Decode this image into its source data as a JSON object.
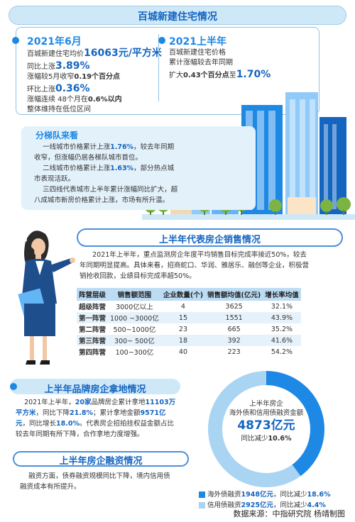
{
  "header": {
    "title": "百城新建住宅情况"
  },
  "june": {
    "title": "2021年6月",
    "line1_prefix": "百城新建住宅均价",
    "line1_value": "16063元/平方米",
    "line2_prefix": "同比上涨",
    "line2_value": "3.89%",
    "line3_prefix": "涨幅较5月收窄",
    "line3_value": "0.19个百分点",
    "line4_prefix": "环比上涨",
    "line4_value": "0.36%",
    "line5_prefix": "涨幅连续 48个月在",
    "line5_value": "0.6%以内",
    "line6": "整体维持在低位区间"
  },
  "h1": {
    "title": "2021上半年",
    "line1": "百城新建住宅价格",
    "line2": "累计涨幅较去年同期",
    "line3_prefix": "扩大",
    "line3_value1": "0.43个百分点",
    "line3_mid": "至",
    "line3_value2": "1.70%"
  },
  "tiers": {
    "title": "分梯队来看",
    "p1_prefix": "一线城市价格累计上涨",
    "p1_value": "1.76%",
    "p1_suffix": "，较去年同期",
    "p1_line2": "收窄，但涨幅仍居各梯队城市首位。",
    "p2_prefix": "二线城市价格累计上涨",
    "p2_value": "1.63%",
    "p2_suffix": "，部分热点城",
    "p2_line2": "市表现活跃。",
    "p3_line1": "三四线代表城市上半年累计涨幅同比扩大，超",
    "p3_line2": "八成城市新房价格累计上涨，市场有所升温。"
  },
  "sales": {
    "title": "上半年代表房企销售情况",
    "p_line1": "2021年上半年，重点监测房企年度平均销售目标完成率接近50%，较去",
    "p_line2": "年同期明显提高。具体来看，招商蛇口、华润、雅居乐、融创等企业，积极营",
    "p_line3": "销抢收回款，业绩目标完成率超50%。",
    "columns": [
      "阵营层级",
      "销售额范围",
      "企业数量(个)",
      "销售额均值(亿元)",
      "增长率均值"
    ],
    "rows": [
      [
        "超级阵营",
        "3000亿以上",
        "4",
        "3625",
        "32.1%"
      ],
      [
        "第一阵营",
        "1000 ~3000亿",
        "15",
        "1551",
        "43.9%"
      ],
      [
        "第二阵营",
        "500~1000亿",
        "23",
        "665",
        "35.2%"
      ],
      [
        "第三阵营",
        "300~ 500亿",
        "18",
        "392",
        "41.6%"
      ],
      [
        "第四阵营",
        "100~300亿",
        "40",
        "223",
        "54.2%"
      ]
    ]
  },
  "land": {
    "title": "上半年品牌房企拿地情况",
    "l1_prefix": "2021年上半年，",
    "l1_v1": "20家",
    "l1_mid": "品牌房企累计拿地",
    "l1_v2": "11103万",
    "l2_v2b": "平方米",
    "l2_mid": "，同比下降",
    "l2_v3": "21.8%",
    "l2_mid2": "；累计拿地金额",
    "l2_v4": "9571亿",
    "l3_v4b": "元",
    "l3_mid": "，同比增长",
    "l3_v5": "18.0%",
    "l3_suffix": "。代表房企招拍挂权益金额占比",
    "l4": "较去年同期有所下降，合作拿地力度增强。"
  },
  "financing": {
    "title": "上半年房企融资情况",
    "l1": "融资方面，债券融资规模同比下降，境内信用债",
    "l2": "融资成本有所提升。"
  },
  "donut": {
    "line1": "上半年房企",
    "line2": "海外债和信用债融资金额",
    "total": "4873亿元",
    "change_prefix": "同比减少",
    "change_value": "10.6%",
    "series": [
      {
        "name": "海外债融资",
        "value": 1948,
        "value_label": "1948亿元",
        "change_prefix": "同比减少",
        "change": "18.6%",
        "color": "#1e88e5"
      },
      {
        "name": "信用债融资",
        "value": 2925,
        "value_label": "2925亿元",
        "change_prefix": "同比减少",
        "change": "4.4%",
        "color": "#a9d4f2"
      }
    ]
  },
  "footer": {
    "source": "数据来源：中指研究院  杨靖制图"
  },
  "colors": {
    "accent": "#1e88e5",
    "dark_blue": "#1565c0",
    "light_blue": "#cfe8f8"
  }
}
